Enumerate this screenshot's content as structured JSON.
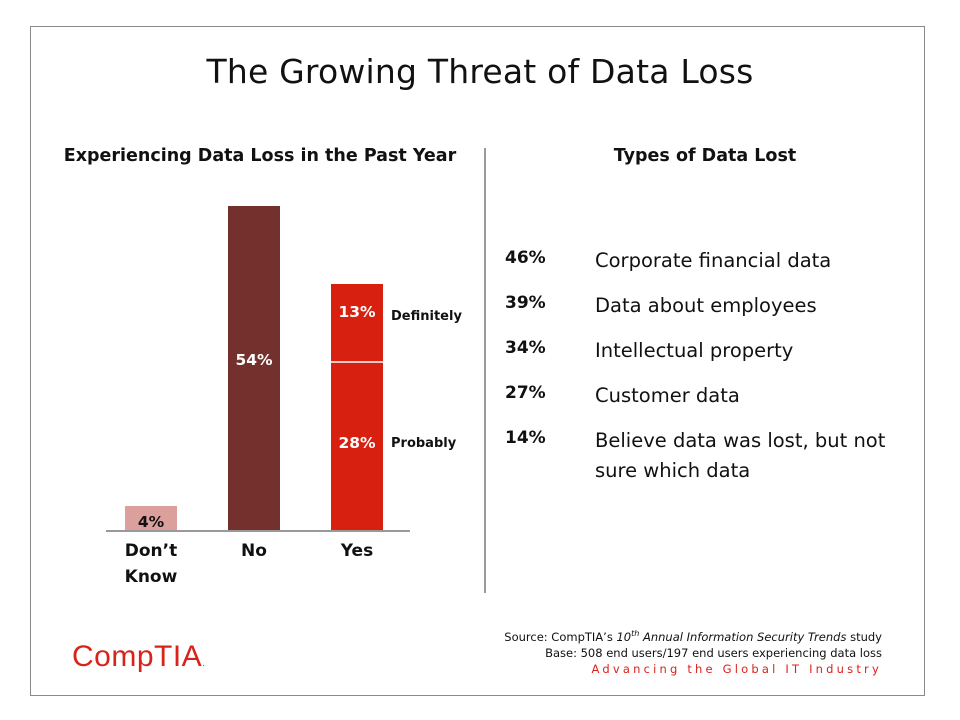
{
  "slide": {
    "title": "The Growing Threat of Data Loss"
  },
  "chart_data": {
    "type": "bar",
    "title": "Experiencing Data Loss in the Past Year",
    "categories": [
      "Don't Know",
      "No",
      "Yes"
    ],
    "series": [
      {
        "name": "Definitely",
        "values": [
          null,
          null,
          13
        ]
      },
      {
        "name": "Probably",
        "values": [
          null,
          null,
          28
        ]
      },
      {
        "values": [
          4,
          54,
          null
        ]
      }
    ],
    "bar_labels": {
      "dont_know": "4%",
      "no": "54%",
      "yes_definitely": "13%",
      "yes_probably": "28%"
    },
    "category_labels": {
      "dont_know_line1": "Don’t",
      "dont_know_line2": "Know",
      "no": "No",
      "yes": "Yes"
    },
    "legend": {
      "definitely": "Definitely",
      "probably": "Probably"
    },
    "colors": {
      "dont_know": "#dba09c",
      "no": "#74302c",
      "yes": "#d82010"
    },
    "units": "%",
    "grid": false
  },
  "types": {
    "title": "Types of Data Lost",
    "items": [
      {
        "pct": "46%",
        "label": "Corporate financial data"
      },
      {
        "pct": "39%",
        "label": "Data about employees"
      },
      {
        "pct": "34%",
        "label": "Intellectual property"
      },
      {
        "pct": "27%",
        "label": "Customer data"
      },
      {
        "pct": "14%",
        "label": "Believe data was lost, but not sure which data"
      }
    ]
  },
  "footer": {
    "source_prefix": "Source: CompTIA’s ",
    "source_ordinal": "10",
    "source_ordinal_suffix": "th",
    "source_study": " Annual Information Security Trends",
    "source_suffix": " study",
    "base": "Base: 508 end users/197 end users experiencing data loss",
    "tagline": "Advancing the Global IT Industry",
    "logo": "CompTIA",
    "logo_mark": "."
  }
}
